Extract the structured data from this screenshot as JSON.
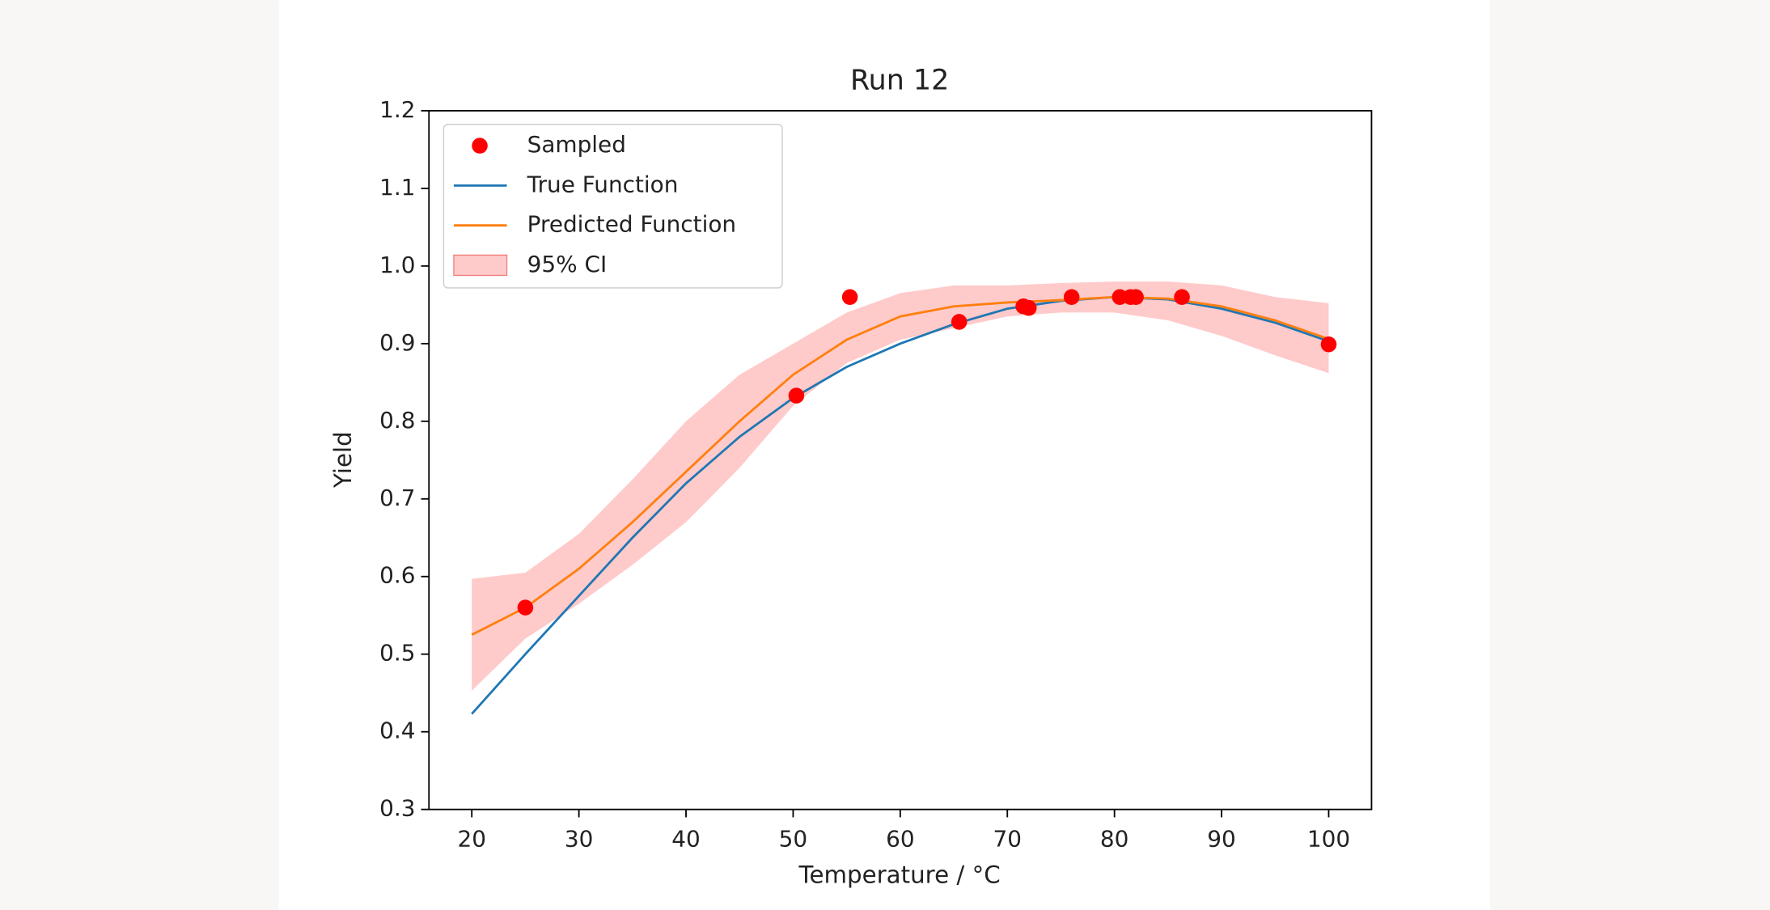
{
  "chart_data": {
    "type": "line",
    "title": "Run 12",
    "xlabel": "Temperature / °C",
    "ylabel": "Yield",
    "xlim": [
      16,
      104
    ],
    "ylim": [
      0.3,
      1.2
    ],
    "xticks": [
      20,
      30,
      40,
      50,
      60,
      70,
      80,
      90,
      100
    ],
    "yticks": [
      0.3,
      0.4,
      0.5,
      0.6,
      0.7,
      0.8,
      0.9,
      {
        "value": 1,
        "label": "1.0"
      },
      1.1,
      1.2
    ],
    "legend": "upper left",
    "x": [
      20,
      25,
      30,
      35,
      40,
      45,
      50,
      55,
      60,
      65,
      70,
      75,
      80,
      85,
      90,
      95,
      100
    ],
    "series": [
      {
        "name": "True Function",
        "color": "#1f77b4",
        "values": [
          0.423,
          0.5,
          0.575,
          0.65,
          0.72,
          0.78,
          0.83,
          0.87,
          0.9,
          0.925,
          0.945,
          0.955,
          0.96,
          0.957,
          0.945,
          0.927,
          0.903
        ]
      },
      {
        "name": "Predicted Function",
        "color": "#ff7f0e",
        "values": [
          0.525,
          0.56,
          0.61,
          0.67,
          0.735,
          0.8,
          0.86,
          0.905,
          0.935,
          0.948,
          0.953,
          0.956,
          0.96,
          0.958,
          0.948,
          0.93,
          0.906
        ]
      }
    ],
    "band": {
      "name": "95% CI",
      "color": "#ffb3b3",
      "lower": [
        0.453,
        0.52,
        0.565,
        0.615,
        0.67,
        0.74,
        0.82,
        0.875,
        0.905,
        0.92,
        0.935,
        0.94,
        0.94,
        0.93,
        0.91,
        0.885,
        0.862
      ],
      "upper": [
        0.597,
        0.605,
        0.655,
        0.725,
        0.8,
        0.86,
        0.9,
        0.94,
        0.965,
        0.975,
        0.975,
        0.978,
        0.98,
        0.98,
        0.975,
        0.96,
        0.952
      ]
    },
    "scatter": {
      "name": "Sampled",
      "color": "#ff0000",
      "x": [
        25,
        50.3,
        55.3,
        65.5,
        71.5,
        72,
        76,
        80.5,
        81.5,
        82,
        86.3,
        100
      ],
      "y": [
        0.56,
        0.833,
        0.96,
        0.928,
        0.948,
        0.946,
        0.96,
        0.96,
        0.96,
        0.96,
        0.96,
        0.899
      ]
    }
  }
}
